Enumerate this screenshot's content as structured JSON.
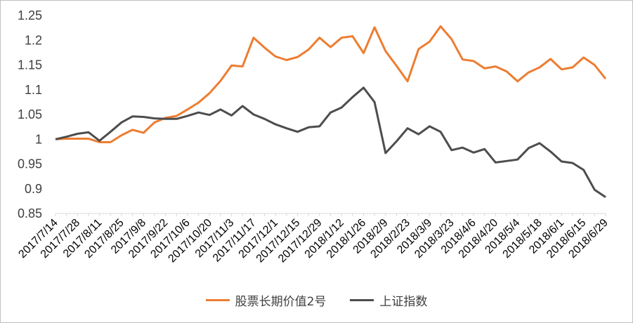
{
  "chart_data": {
    "type": "line",
    "title": "",
    "xlabel": "",
    "ylabel": "",
    "ylim": [
      0.85,
      1.25
    ],
    "yticks": [
      0.85,
      0.9,
      0.95,
      1,
      1.05,
      1.1,
      1.15,
      1.2,
      1.25
    ],
    "ytick_labels": [
      "0.85",
      "0.9",
      "0.95",
      "1",
      "1.05",
      "1.1",
      "1.15",
      "1.2",
      "1.25"
    ],
    "grid": false,
    "legend_position": "bottom",
    "x": [
      "2017/7/14",
      "2017/7/21",
      "2017/7/28",
      "2017/8/4",
      "2017/8/11",
      "2017/8/18",
      "2017/8/25",
      "2017/9/1",
      "2017/9/8",
      "2017/9/15",
      "2017/9/22",
      "2017/9/29",
      "2017/10/6",
      "2017/10/13",
      "2017/10/20",
      "2017/10/27",
      "2017/11/3",
      "2017/11/10",
      "2017/11/17",
      "2017/11/24",
      "2017/12/1",
      "2017/12/8",
      "2017/12/15",
      "2017/12/22",
      "2017/12/29",
      "2018/1/5",
      "2018/1/12",
      "2018/1/19",
      "2018/1/26",
      "2018/2/2",
      "2018/2/9",
      "2018/2/16",
      "2018/2/23",
      "2018/3/2",
      "2018/3/9",
      "2018/3/16",
      "2018/3/23",
      "2018/3/30",
      "2018/4/6",
      "2018/4/13",
      "2018/4/20",
      "2018/4/27",
      "2018/5/4",
      "2018/5/11",
      "2018/5/18",
      "2018/5/25",
      "2018/6/1",
      "2018/6/8",
      "2018/6/15",
      "2018/6/22",
      "2018/6/29"
    ],
    "xtick_labels": [
      "2017/7/14",
      "2017/7/28",
      "2017/8/11",
      "2017/8/25",
      "2017/9/8",
      "2017/9/22",
      "2017/10/6",
      "2017/10/20",
      "2017/11/3",
      "2017/11/17",
      "2017/12/1",
      "2017/12/15",
      "2017/12/29",
      "2018/1/12",
      "2018/1/26",
      "2018/2/9",
      "2018/2/23",
      "2018/3/9",
      "2018/3/23",
      "2018/4/6",
      "2018/4/20",
      "2018/5/4",
      "2018/5/18",
      "2018/6/1",
      "2018/6/15",
      "2018/6/29"
    ],
    "series": [
      {
        "name": "股票长期价值2号",
        "color": "#ED7D31",
        "values": [
          1.0,
          1.001,
          1.001,
          1.001,
          0.994,
          0.994,
          1.008,
          1.019,
          1.013,
          1.034,
          1.043,
          1.047,
          1.06,
          1.074,
          1.093,
          1.118,
          1.149,
          1.147,
          1.205,
          1.185,
          1.167,
          1.16,
          1.166,
          1.181,
          1.205,
          1.186,
          1.205,
          1.208,
          1.174,
          1.226,
          1.178,
          1.148,
          1.117,
          1.182,
          1.197,
          1.228,
          1.202,
          1.161,
          1.158,
          1.143,
          1.147,
          1.137,
          1.117,
          1.135,
          1.145,
          1.162,
          1.141,
          1.145,
          1.165,
          1.15,
          1.122
        ]
      },
      {
        "name": "上证指数",
        "color": "#4D4D4D",
        "values": [
          1.0,
          1.005,
          1.011,
          1.014,
          0.997,
          1.015,
          1.034,
          1.046,
          1.045,
          1.042,
          1.041,
          1.041,
          1.047,
          1.054,
          1.049,
          1.06,
          1.048,
          1.067,
          1.05,
          1.041,
          1.03,
          1.022,
          1.015,
          1.024,
          1.026,
          1.054,
          1.064,
          1.085,
          1.104,
          1.075,
          0.972,
          0.996,
          1.022,
          1.01,
          1.026,
          1.015,
          0.978,
          0.983,
          0.973,
          0.98,
          0.953,
          0.956,
          0.959,
          0.982,
          0.992,
          0.975,
          0.955,
          0.952,
          0.938,
          0.898,
          0.883
        ]
      }
    ]
  }
}
